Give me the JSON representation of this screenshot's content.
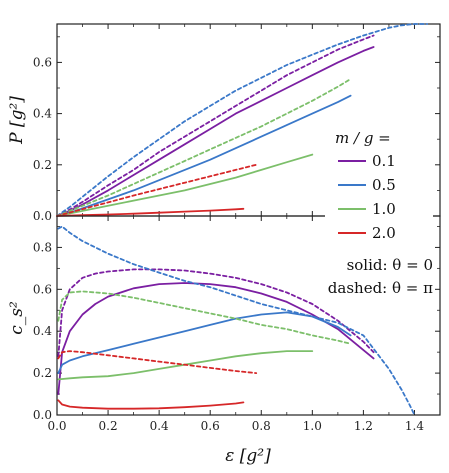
{
  "chart_data": [
    {
      "type": "line",
      "panel": "top",
      "ylabel": "P [g²]",
      "xlabel": "",
      "xlim": [
        0,
        1.5
      ],
      "ylim": [
        0,
        0.75
      ],
      "yticks": [
        0.0,
        0.2,
        0.4,
        0.6
      ],
      "yticklabels": [
        "0.0",
        "0.2",
        "0.4",
        "0.6"
      ],
      "grid": false,
      "series": [
        {
          "name": "0.1",
          "color": "#7b1fa2",
          "style": "solid",
          "x": [
            0,
            0.05,
            0.1,
            0.2,
            0.3,
            0.4,
            0.5,
            0.6,
            0.7,
            0.8,
            0.9,
            1.0,
            1.1,
            1.2,
            1.24
          ],
          "y": [
            0,
            0.02,
            0.045,
            0.1,
            0.16,
            0.22,
            0.28,
            0.34,
            0.4,
            0.45,
            0.5,
            0.55,
            0.6,
            0.645,
            0.66
          ]
        },
        {
          "name": "0.1",
          "color": "#7b1fa2",
          "style": "dashed",
          "x": [
            0,
            0.05,
            0.1,
            0.2,
            0.3,
            0.4,
            0.5,
            0.6,
            0.7,
            0.8,
            0.9,
            1.0,
            1.1,
            1.2,
            1.24
          ],
          "y": [
            0,
            0.025,
            0.055,
            0.12,
            0.18,
            0.25,
            0.31,
            0.37,
            0.43,
            0.49,
            0.55,
            0.6,
            0.65,
            0.69,
            0.705
          ]
        },
        {
          "name": "0.5",
          "color": "#3a78c9",
          "style": "solid",
          "x": [
            0,
            0.05,
            0.1,
            0.2,
            0.3,
            0.4,
            0.5,
            0.6,
            0.7,
            0.8,
            0.9,
            1.0,
            1.1,
            1.15
          ],
          "y": [
            0,
            0.012,
            0.03,
            0.065,
            0.1,
            0.14,
            0.18,
            0.22,
            0.265,
            0.31,
            0.355,
            0.4,
            0.445,
            0.47
          ]
        },
        {
          "name": "0.5",
          "color": "#3a78c9",
          "style": "dashed",
          "x": [
            0,
            0.05,
            0.1,
            0.2,
            0.3,
            0.4,
            0.5,
            0.6,
            0.7,
            0.8,
            0.9,
            1.0,
            1.1,
            1.2,
            1.3,
            1.35,
            1.4,
            1.45
          ],
          "y": [
            0,
            0.035,
            0.075,
            0.155,
            0.23,
            0.3,
            0.37,
            0.43,
            0.49,
            0.54,
            0.59,
            0.63,
            0.67,
            0.705,
            0.735,
            0.745,
            0.75,
            0.75
          ]
        },
        {
          "name": "1.0",
          "color": "#7cbf6a",
          "style": "solid",
          "x": [
            0,
            0.1,
            0.2,
            0.3,
            0.4,
            0.5,
            0.6,
            0.7,
            0.8,
            0.9,
            1.0
          ],
          "y": [
            0,
            0.02,
            0.04,
            0.06,
            0.08,
            0.1,
            0.125,
            0.15,
            0.18,
            0.21,
            0.24
          ]
        },
        {
          "name": "1.0",
          "color": "#7cbf6a",
          "style": "dashed",
          "x": [
            0,
            0.1,
            0.2,
            0.3,
            0.4,
            0.5,
            0.6,
            0.7,
            0.8,
            0.9,
            1.0,
            1.1,
            1.15
          ],
          "y": [
            0,
            0.04,
            0.08,
            0.125,
            0.17,
            0.215,
            0.26,
            0.305,
            0.35,
            0.4,
            0.45,
            0.505,
            0.535
          ]
        },
        {
          "name": "2.0",
          "color": "#d62728",
          "style": "solid",
          "x": [
            0,
            0.1,
            0.2,
            0.3,
            0.4,
            0.5,
            0.6,
            0.7,
            0.73
          ],
          "y": [
            0,
            0.003,
            0.006,
            0.009,
            0.013,
            0.017,
            0.021,
            0.026,
            0.028
          ]
        },
        {
          "name": "2.0",
          "color": "#d62728",
          "style": "dashed",
          "x": [
            0,
            0.1,
            0.2,
            0.3,
            0.4,
            0.5,
            0.6,
            0.7,
            0.78
          ],
          "y": [
            0,
            0.027,
            0.053,
            0.08,
            0.105,
            0.13,
            0.155,
            0.18,
            0.2
          ]
        }
      ]
    },
    {
      "type": "line",
      "panel": "bottom",
      "ylabel": "c_s²",
      "xlabel": "ε [g²]",
      "xlim": [
        0,
        1.5
      ],
      "ylim": [
        0,
        0.95
      ],
      "xticks": [
        0.0,
        0.2,
        0.4,
        0.6,
        0.8,
        1.0,
        1.2,
        1.4
      ],
      "xticklabels": [
        "0.0",
        "0.2",
        "0.4",
        "0.6",
        "0.8",
        "1.0",
        "1.2",
        "1.4"
      ],
      "yticks": [
        0.0,
        0.2,
        0.4,
        0.6,
        0.8
      ],
      "yticklabels": [
        "0.0",
        "0.2",
        "0.4",
        "0.6",
        "0.8"
      ],
      "grid": false,
      "series": [
        {
          "name": "0.1",
          "color": "#7b1fa2",
          "style": "solid",
          "x": [
            0.005,
            0.02,
            0.05,
            0.1,
            0.15,
            0.2,
            0.3,
            0.4,
            0.5,
            0.6,
            0.7,
            0.8,
            0.9,
            1.0,
            1.1,
            1.2,
            1.24
          ],
          "y": [
            0.1,
            0.3,
            0.4,
            0.48,
            0.53,
            0.565,
            0.605,
            0.625,
            0.63,
            0.625,
            0.61,
            0.58,
            0.54,
            0.48,
            0.41,
            0.31,
            0.27
          ]
        },
        {
          "name": "0.1",
          "color": "#7b1fa2",
          "style": "dashed",
          "x": [
            0.005,
            0.02,
            0.05,
            0.1,
            0.15,
            0.2,
            0.3,
            0.4,
            0.5,
            0.6,
            0.7,
            0.8,
            0.9,
            1.0,
            1.1,
            1.2,
            1.24
          ],
          "y": [
            0.28,
            0.5,
            0.6,
            0.655,
            0.675,
            0.685,
            0.695,
            0.695,
            0.69,
            0.675,
            0.655,
            0.625,
            0.585,
            0.53,
            0.45,
            0.35,
            0.3
          ]
        },
        {
          "name": "0.5",
          "color": "#3a78c9",
          "style": "solid",
          "x": [
            0.005,
            0.02,
            0.05,
            0.1,
            0.2,
            0.3,
            0.4,
            0.5,
            0.6,
            0.7,
            0.8,
            0.9,
            1.0,
            1.1,
            1.15
          ],
          "y": [
            0.2,
            0.24,
            0.26,
            0.28,
            0.31,
            0.34,
            0.37,
            0.4,
            0.43,
            0.46,
            0.48,
            0.49,
            0.47,
            0.42,
            0.38
          ]
        },
        {
          "name": "0.5",
          "color": "#3a78c9",
          "style": "dashed",
          "x": [
            0.005,
            0.02,
            0.05,
            0.1,
            0.2,
            0.3,
            0.4,
            0.5,
            0.6,
            0.7,
            0.8,
            0.9,
            1.0,
            1.1,
            1.2,
            1.3,
            1.35,
            1.38,
            1.4
          ],
          "y": [
            0.89,
            0.9,
            0.87,
            0.83,
            0.77,
            0.72,
            0.68,
            0.64,
            0.61,
            0.57,
            0.53,
            0.5,
            0.47,
            0.44,
            0.38,
            0.22,
            0.12,
            0.05,
            0.0
          ]
        },
        {
          "name": "1.0",
          "color": "#7cbf6a",
          "style": "solid",
          "x": [
            0.005,
            0.05,
            0.1,
            0.2,
            0.3,
            0.4,
            0.5,
            0.6,
            0.7,
            0.8,
            0.9,
            1.0
          ],
          "y": [
            0.17,
            0.175,
            0.18,
            0.185,
            0.2,
            0.22,
            0.24,
            0.26,
            0.28,
            0.295,
            0.305,
            0.305
          ]
        },
        {
          "name": "1.0",
          "color": "#7cbf6a",
          "style": "dashed",
          "x": [
            0.005,
            0.02,
            0.05,
            0.1,
            0.2,
            0.3,
            0.4,
            0.5,
            0.6,
            0.7,
            0.8,
            0.9,
            1.0,
            1.1,
            1.15
          ],
          "y": [
            0.45,
            0.55,
            0.585,
            0.59,
            0.58,
            0.56,
            0.535,
            0.51,
            0.485,
            0.46,
            0.43,
            0.41,
            0.38,
            0.355,
            0.34
          ]
        },
        {
          "name": "2.0",
          "color": "#d62728",
          "style": "solid",
          "x": [
            0.005,
            0.02,
            0.05,
            0.1,
            0.2,
            0.3,
            0.4,
            0.5,
            0.6,
            0.7,
            0.73
          ],
          "y": [
            0.07,
            0.05,
            0.04,
            0.035,
            0.03,
            0.03,
            0.032,
            0.037,
            0.045,
            0.055,
            0.06
          ]
        },
        {
          "name": "2.0",
          "color": "#d62728",
          "style": "dashed",
          "x": [
            0.005,
            0.02,
            0.05,
            0.1,
            0.2,
            0.3,
            0.4,
            0.5,
            0.6,
            0.7,
            0.78
          ],
          "y": [
            0.27,
            0.3,
            0.305,
            0.3,
            0.285,
            0.27,
            0.255,
            0.24,
            0.225,
            0.21,
            0.2
          ]
        }
      ]
    }
  ],
  "legend": {
    "title": "m / g =",
    "placement": "right",
    "entries": [
      {
        "label": "0.1",
        "color": "#7b1fa2"
      },
      {
        "label": "0.5",
        "color": "#3a78c9"
      },
      {
        "label": "1.0",
        "color": "#7cbf6a"
      },
      {
        "label": "2.0",
        "color": "#d62728"
      }
    ]
  },
  "notes": {
    "solid": "solid: θ = 0",
    "dashed": "dashed: θ = π"
  }
}
